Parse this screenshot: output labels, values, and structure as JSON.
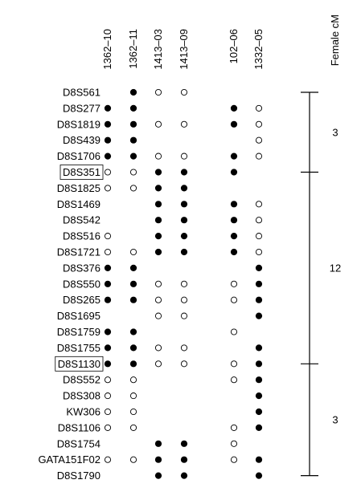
{
  "columns": [
    "1362–10",
    "1362–11",
    "1413–03",
    "1413–09",
    "102–06",
    "1332–05"
  ],
  "axis_title": "Female cM",
  "colors": {
    "ink": "#000000",
    "background": "#ffffff"
  },
  "rows": [
    {
      "marker": "D8S561",
      "boxed": false,
      "calls": [
        "",
        "F",
        "O",
        "O",
        "",
        ""
      ]
    },
    {
      "marker": "D8S277",
      "boxed": false,
      "calls": [
        "F",
        "F",
        "",
        "",
        "F",
        "O"
      ]
    },
    {
      "marker": "D8S1819",
      "boxed": false,
      "calls": [
        "F",
        "F",
        "O",
        "O",
        "F",
        "O"
      ]
    },
    {
      "marker": "D8S439",
      "boxed": false,
      "calls": [
        "F",
        "F",
        "",
        "",
        "",
        "O"
      ]
    },
    {
      "marker": "D8S1706",
      "boxed": false,
      "calls": [
        "F",
        "F",
        "O",
        "O",
        "F",
        "O"
      ]
    },
    {
      "marker": "D8S351",
      "boxed": true,
      "calls": [
        "O",
        "O",
        "F",
        "F",
        "F",
        ""
      ]
    },
    {
      "marker": "D8S1825",
      "boxed": false,
      "calls": [
        "O",
        "O",
        "F",
        "F",
        "",
        ""
      ]
    },
    {
      "marker": "D8S1469",
      "boxed": false,
      "calls": [
        "",
        "",
        "F",
        "F",
        "F",
        "O"
      ]
    },
    {
      "marker": "D8S542",
      "boxed": false,
      "calls": [
        "",
        "",
        "F",
        "F",
        "F",
        "O"
      ]
    },
    {
      "marker": "D8S516",
      "boxed": false,
      "calls": [
        "O",
        "",
        "F",
        "F",
        "F",
        "O"
      ]
    },
    {
      "marker": "D8S1721",
      "boxed": false,
      "calls": [
        "O",
        "O",
        "F",
        "F",
        "F",
        "O"
      ]
    },
    {
      "marker": "D8S376",
      "boxed": false,
      "calls": [
        "F",
        "F",
        "",
        "",
        "",
        "F"
      ]
    },
    {
      "marker": "D8S550",
      "boxed": false,
      "calls": [
        "F",
        "F",
        "O",
        "O",
        "O",
        "F"
      ]
    },
    {
      "marker": "D8S265",
      "boxed": false,
      "calls": [
        "F",
        "F",
        "O",
        "O",
        "O",
        "F"
      ]
    },
    {
      "marker": "D8S1695",
      "boxed": false,
      "calls": [
        "",
        "",
        "O",
        "O",
        "",
        "F"
      ]
    },
    {
      "marker": "D8S1759",
      "boxed": false,
      "calls": [
        "F",
        "F",
        "",
        "",
        "O",
        ""
      ]
    },
    {
      "marker": "D8S1755",
      "boxed": false,
      "calls": [
        "F",
        "F",
        "O",
        "O",
        "",
        "F"
      ]
    },
    {
      "marker": "D8S1130",
      "boxed": true,
      "calls": [
        "F",
        "F",
        "O",
        "O",
        "O",
        "F"
      ]
    },
    {
      "marker": "D8S552",
      "boxed": false,
      "calls": [
        "O",
        "O",
        "",
        "",
        "O",
        "F"
      ]
    },
    {
      "marker": "D8S308",
      "boxed": false,
      "calls": [
        "O",
        "O",
        "",
        "",
        "",
        "F"
      ]
    },
    {
      "marker": "KW306",
      "boxed": false,
      "calls": [
        "O",
        "O",
        "",
        "",
        "",
        "F"
      ]
    },
    {
      "marker": "D8S1106",
      "boxed": false,
      "calls": [
        "O",
        "O",
        "",
        "",
        "O",
        "F"
      ]
    },
    {
      "marker": "D8S1754",
      "boxed": false,
      "calls": [
        "",
        "",
        "F",
        "F",
        "O",
        ""
      ]
    },
    {
      "marker": "GATA151F02",
      "boxed": false,
      "calls": [
        "O",
        "O",
        "F",
        "F",
        "O",
        "F"
      ]
    },
    {
      "marker": "D8S1790",
      "boxed": false,
      "calls": [
        "",
        "",
        "F",
        "F",
        "",
        "F"
      ]
    }
  ],
  "cm_scale": {
    "segments": [
      {
        "from_marker": "D8S561",
        "to_marker": "D8S351",
        "label": "3"
      },
      {
        "from_marker": "D8S351",
        "to_marker": "D8S1130",
        "label": "12"
      },
      {
        "from_marker": "D8S1130",
        "to_marker": "D8S1790",
        "label": "3"
      }
    ]
  }
}
